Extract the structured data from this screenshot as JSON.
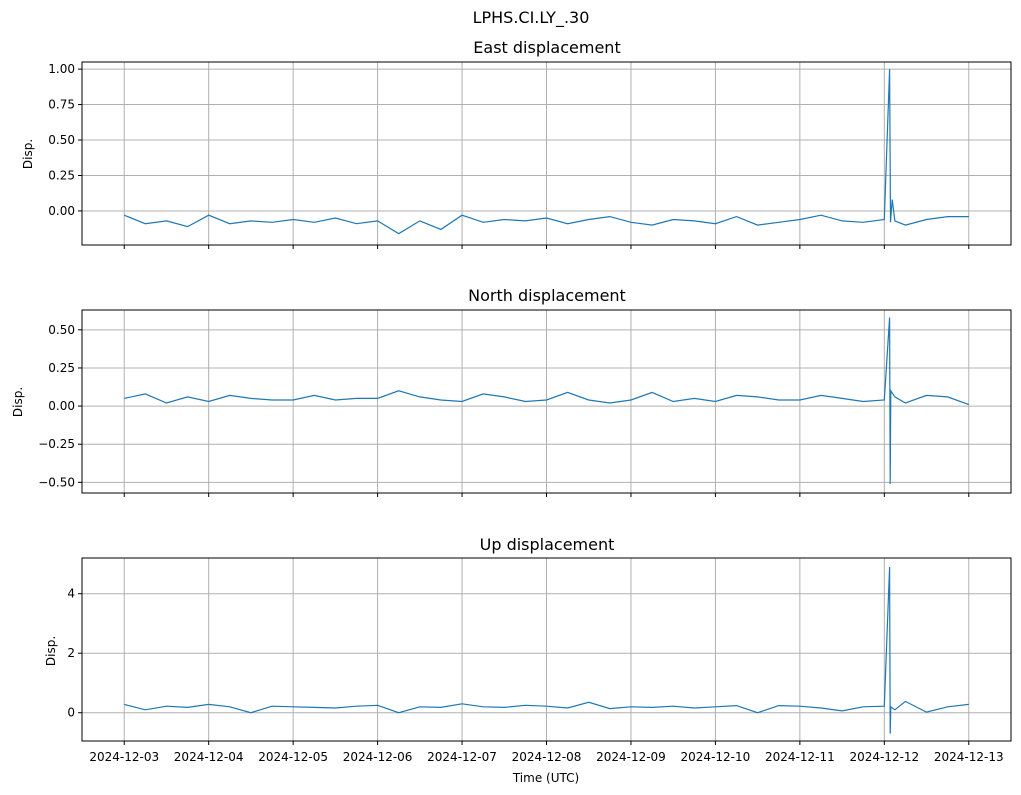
{
  "figure": {
    "suptitle": "LPHS.CI.LY_.30",
    "xlabel": "Time (UTC)",
    "x_ticks": [
      "2024-12-03",
      "2024-12-04",
      "2024-12-05",
      "2024-12-06",
      "2024-12-07",
      "2024-12-08",
      "2024-12-09",
      "2024-12-10",
      "2024-12-11",
      "2024-12-12",
      "2024-12-13"
    ]
  },
  "colors": {
    "line": "#1f77b4",
    "grid": "#b0b0b0",
    "axes": "#000000"
  },
  "chart_data": [
    {
      "type": "line",
      "title": "East displacement",
      "ylabel": "Disp.",
      "x_unit": "days",
      "xlim": [
        "2024-12-02T12:00",
        "2024-12-13T12:00"
      ],
      "ylim": [
        -0.24,
        1.05
      ],
      "y_ticks": [
        0.0,
        0.25,
        0.5,
        0.75,
        1.0
      ],
      "y_tick_labels": [
        "0.00",
        "0.25",
        "0.50",
        "0.75",
        "1.00"
      ],
      "grid": true,
      "series": [
        {
          "x": [
            "2024-12-03T00:00",
            "2024-12-03T06:00",
            "2024-12-03T12:00",
            "2024-12-03T18:00",
            "2024-12-04T00:00",
            "2024-12-04T06:00",
            "2024-12-04T12:00",
            "2024-12-04T18:00",
            "2024-12-05T00:00",
            "2024-12-05T06:00",
            "2024-12-05T12:00",
            "2024-12-05T18:00",
            "2024-12-06T00:00",
            "2024-12-06T06:00",
            "2024-12-06T12:00",
            "2024-12-06T18:00",
            "2024-12-07T00:00",
            "2024-12-07T06:00",
            "2024-12-07T12:00",
            "2024-12-07T18:00",
            "2024-12-08T00:00",
            "2024-12-08T06:00",
            "2024-12-08T12:00",
            "2024-12-08T18:00",
            "2024-12-09T00:00",
            "2024-12-09T06:00",
            "2024-12-09T12:00",
            "2024-12-09T18:00",
            "2024-12-10T00:00",
            "2024-12-10T06:00",
            "2024-12-10T12:00",
            "2024-12-10T18:00",
            "2024-12-11T00:00",
            "2024-12-11T06:00",
            "2024-12-11T12:00",
            "2024-12-11T18:00",
            "2024-12-12T00:00",
            "2024-12-12T01:30",
            "2024-12-12T01:45",
            "2024-12-12T02:15",
            "2024-12-12T03:00",
            "2024-12-12T06:00",
            "2024-12-12T12:00",
            "2024-12-12T18:00",
            "2024-12-13T00:00"
          ],
          "y": [
            -0.03,
            -0.09,
            -0.07,
            -0.11,
            -0.03,
            -0.09,
            -0.07,
            -0.08,
            -0.06,
            -0.08,
            -0.05,
            -0.09,
            -0.07,
            -0.16,
            -0.07,
            -0.13,
            -0.03,
            -0.08,
            -0.06,
            -0.07,
            -0.05,
            -0.09,
            -0.06,
            -0.04,
            -0.08,
            -0.1,
            -0.06,
            -0.07,
            -0.09,
            -0.04,
            -0.1,
            -0.08,
            -0.06,
            -0.03,
            -0.07,
            -0.08,
            -0.06,
            1.0,
            -0.08,
            0.08,
            -0.07,
            -0.1,
            -0.06,
            -0.04,
            -0.04
          ]
        }
      ]
    },
    {
      "type": "line",
      "title": "North displacement",
      "ylabel": "Disp.",
      "x_unit": "days",
      "xlim": [
        "2024-12-02T12:00",
        "2024-12-13T12:00"
      ],
      "ylim": [
        -0.57,
        0.63
      ],
      "y_ticks": [
        -0.5,
        -0.25,
        0.0,
        0.25,
        0.5
      ],
      "y_tick_labels": [
        "−0.50",
        "−0.25",
        "0.00",
        "0.25",
        "0.50"
      ],
      "grid": true,
      "series": [
        {
          "x": [
            "2024-12-03T00:00",
            "2024-12-03T06:00",
            "2024-12-03T12:00",
            "2024-12-03T18:00",
            "2024-12-04T00:00",
            "2024-12-04T06:00",
            "2024-12-04T12:00",
            "2024-12-04T18:00",
            "2024-12-05T00:00",
            "2024-12-05T06:00",
            "2024-12-05T12:00",
            "2024-12-05T18:00",
            "2024-12-06T00:00",
            "2024-12-06T06:00",
            "2024-12-06T12:00",
            "2024-12-06T18:00",
            "2024-12-07T00:00",
            "2024-12-07T06:00",
            "2024-12-07T12:00",
            "2024-12-07T18:00",
            "2024-12-08T00:00",
            "2024-12-08T06:00",
            "2024-12-08T12:00",
            "2024-12-08T18:00",
            "2024-12-09T00:00",
            "2024-12-09T06:00",
            "2024-12-09T12:00",
            "2024-12-09T18:00",
            "2024-12-10T00:00",
            "2024-12-10T06:00",
            "2024-12-10T12:00",
            "2024-12-10T18:00",
            "2024-12-11T00:00",
            "2024-12-11T06:00",
            "2024-12-11T12:00",
            "2024-12-11T18:00",
            "2024-12-12T00:00",
            "2024-12-12T01:30",
            "2024-12-12T01:40",
            "2024-12-12T01:50",
            "2024-12-12T03:00",
            "2024-12-12T06:00",
            "2024-12-12T12:00",
            "2024-12-12T18:00",
            "2024-12-13T00:00"
          ],
          "y": [
            0.05,
            0.08,
            0.02,
            0.06,
            0.03,
            0.07,
            0.05,
            0.04,
            0.04,
            0.07,
            0.04,
            0.05,
            0.05,
            0.1,
            0.06,
            0.04,
            0.03,
            0.08,
            0.06,
            0.03,
            0.04,
            0.09,
            0.04,
            0.02,
            0.04,
            0.09,
            0.03,
            0.05,
            0.03,
            0.07,
            0.06,
            0.04,
            0.04,
            0.07,
            0.05,
            0.03,
            0.04,
            0.58,
            -0.51,
            0.1,
            0.06,
            0.02,
            0.07,
            0.06,
            0.01
          ]
        }
      ]
    },
    {
      "type": "line",
      "title": "Up displacement",
      "ylabel": "Disp.",
      "x_unit": "days",
      "xlim": [
        "2024-12-02T12:00",
        "2024-12-13T12:00"
      ],
      "ylim": [
        -0.95,
        5.2
      ],
      "y_ticks": [
        0,
        2,
        4
      ],
      "y_tick_labels": [
        "0",
        "2",
        "4"
      ],
      "grid": true,
      "series": [
        {
          "x": [
            "2024-12-03T00:00",
            "2024-12-03T06:00",
            "2024-12-03T12:00",
            "2024-12-03T18:00",
            "2024-12-04T00:00",
            "2024-12-04T06:00",
            "2024-12-04T12:00",
            "2024-12-04T18:00",
            "2024-12-05T00:00",
            "2024-12-05T06:00",
            "2024-12-05T12:00",
            "2024-12-05T18:00",
            "2024-12-06T00:00",
            "2024-12-06T06:00",
            "2024-12-06T12:00",
            "2024-12-06T18:00",
            "2024-12-07T00:00",
            "2024-12-07T06:00",
            "2024-12-07T12:00",
            "2024-12-07T18:00",
            "2024-12-08T00:00",
            "2024-12-08T06:00",
            "2024-12-08T12:00",
            "2024-12-08T18:00",
            "2024-12-09T00:00",
            "2024-12-09T06:00",
            "2024-12-09T12:00",
            "2024-12-09T18:00",
            "2024-12-10T00:00",
            "2024-12-10T06:00",
            "2024-12-10T12:00",
            "2024-12-10T18:00",
            "2024-12-11T00:00",
            "2024-12-11T06:00",
            "2024-12-11T12:00",
            "2024-12-11T18:00",
            "2024-12-12T00:00",
            "2024-12-12T01:30",
            "2024-12-12T01:40",
            "2024-12-12T01:50",
            "2024-12-12T03:00",
            "2024-12-12T06:00",
            "2024-12-12T12:00",
            "2024-12-12T18:00",
            "2024-12-13T00:00"
          ],
          "y": [
            0.28,
            0.1,
            0.22,
            0.18,
            0.28,
            0.2,
            0.0,
            0.22,
            0.2,
            0.18,
            0.16,
            0.22,
            0.25,
            0.0,
            0.2,
            0.18,
            0.3,
            0.2,
            0.18,
            0.25,
            0.22,
            0.16,
            0.35,
            0.14,
            0.2,
            0.18,
            0.22,
            0.16,
            0.2,
            0.24,
            0.0,
            0.24,
            0.22,
            0.16,
            0.06,
            0.2,
            0.22,
            4.9,
            -0.7,
            0.2,
            0.1,
            0.38,
            0.02,
            0.2,
            0.28
          ]
        }
      ]
    }
  ]
}
